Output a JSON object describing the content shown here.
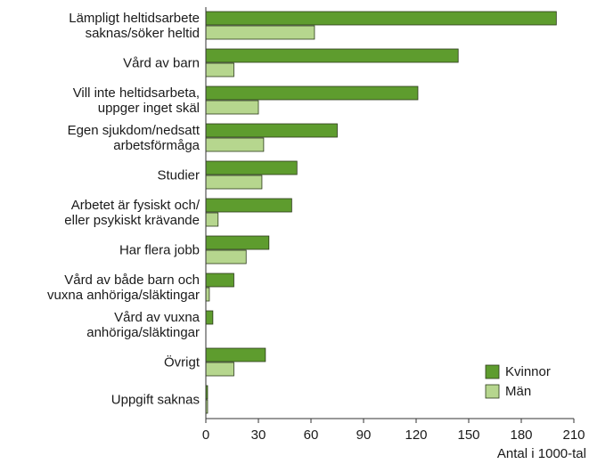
{
  "chart_data": {
    "type": "bar",
    "orientation": "horizontal",
    "categories": [
      "Lämpligt heltidsarbete\nsaknas/söker heltid",
      "Vård av barn",
      "Vill inte heltidsarbeta,\nuppger inget skäl",
      "Egen sjukdom/nedsatt\narbetsförmåga",
      "Studier",
      "Arbetet är fysiskt och/\neller psykiskt krävande",
      "Har flera jobb",
      "Vård av både barn och\nvuxna anhöriga/släktingar",
      "Vård av vuxna\nanhöriga/släktingar",
      "Övrigt",
      "Uppgift saknas"
    ],
    "series": [
      {
        "name": "Kvinnor",
        "color": "#5e9c2e",
        "values": [
          200,
          144,
          121,
          75,
          52,
          49,
          36,
          16,
          4,
          34,
          1
        ]
      },
      {
        "name": "Män",
        "color": "#b6d68e",
        "values": [
          62,
          16,
          30,
          33,
          32,
          7,
          23,
          2,
          0,
          16,
          1
        ]
      }
    ],
    "xlim": [
      0,
      210
    ],
    "xticks": [
      0,
      30,
      60,
      90,
      120,
      150,
      180,
      210
    ],
    "xlabel": "Antal i 1000-tal",
    "legend": "lower right",
    "grid": false
  }
}
